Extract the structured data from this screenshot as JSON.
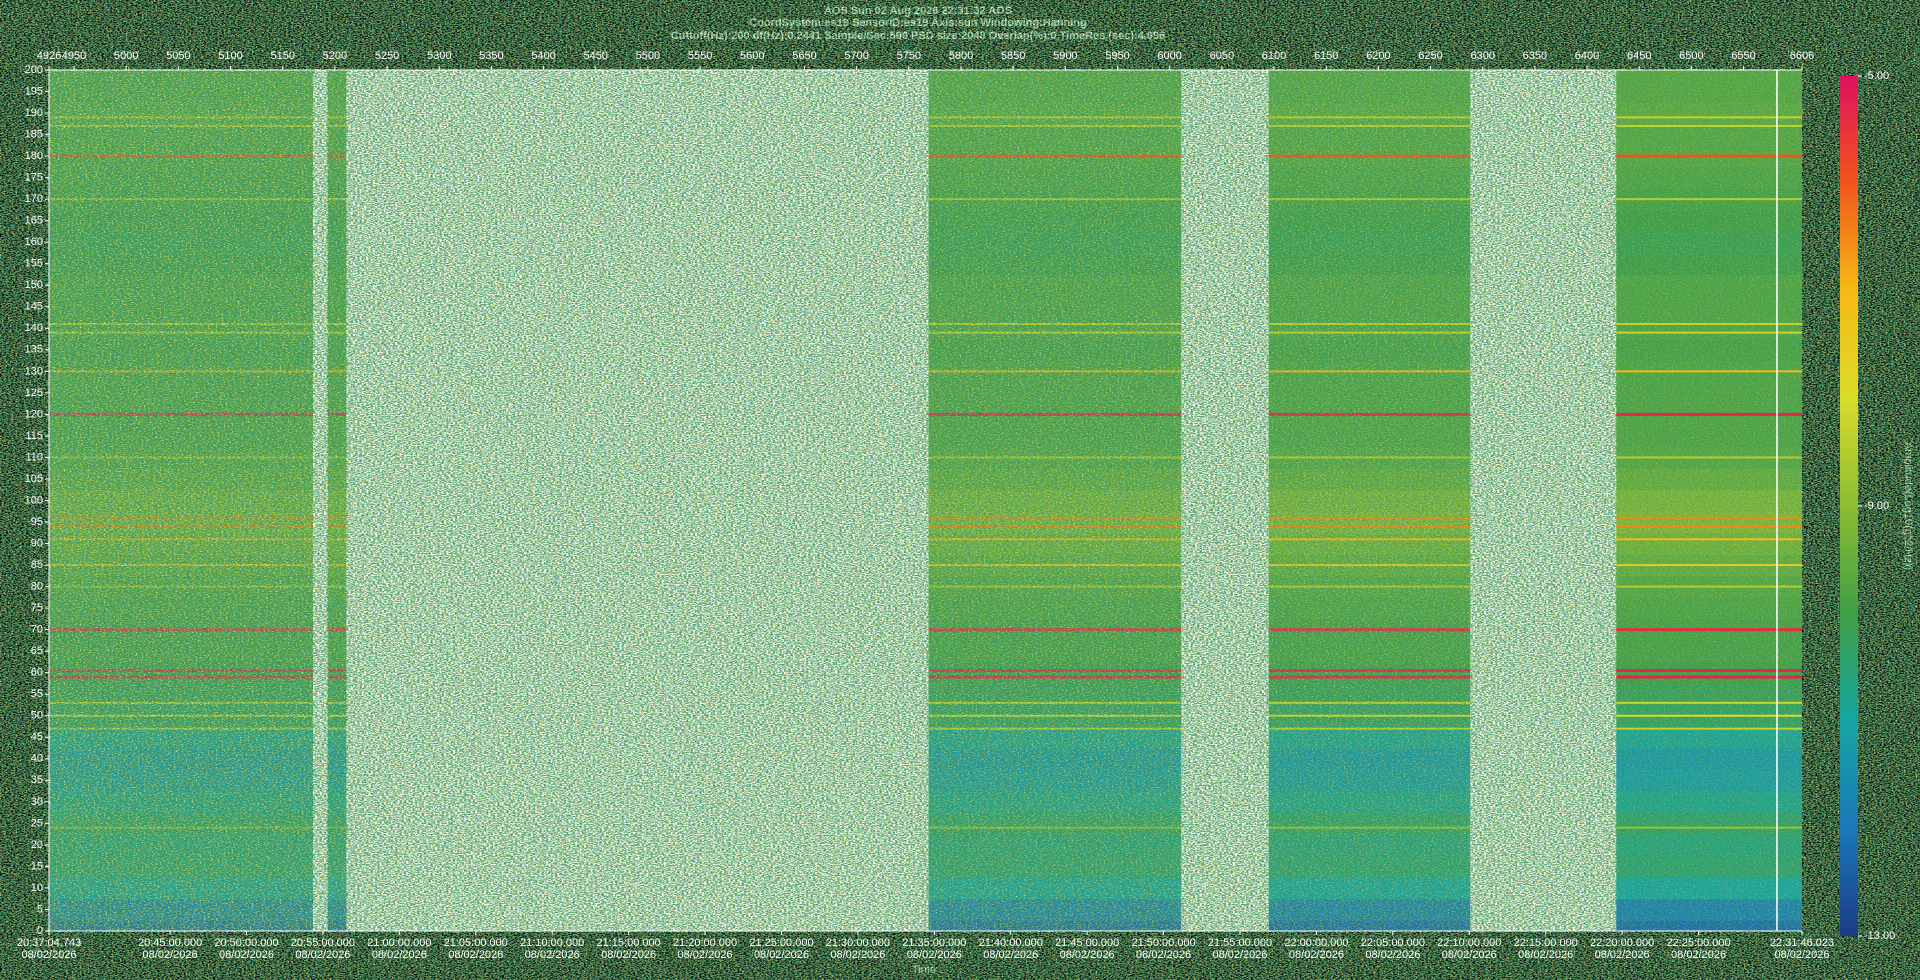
{
  "chart_data": {
    "type": "spectrogram",
    "title": "AOS  Sun 02 Aug 2026 22:31:32  AOS",
    "subtitle": "CoordSystem:es19   SensorID:es19   Axis:sun   Windowing:Hanning",
    "parameters": "Cuttoff(Hz):200     df(Hz):0.2441     Sample/Sec:500     PSD size:2048     Overlap(%):0     TimeRes.(sec):4.096",
    "x_label": "Time",
    "colorbar_label": "Amplitude(Log10(g^2/Hz))",
    "xlim": [
      74224.743,
      81106.023
    ],
    "xticks": [
      {
        "value": 74224.743,
        "label": "20:37:04.743"
      },
      {
        "value": 74700,
        "label": "20:45:00.000"
      },
      {
        "value": 75000,
        "label": "20:50:00.000"
      },
      {
        "value": 75300,
        "label": "20:55:00.000"
      },
      {
        "value": 75600,
        "label": "21:00:00.000"
      },
      {
        "value": 75900,
        "label": "21:05:00.000"
      },
      {
        "value": 76200,
        "label": "21:10:00.000"
      },
      {
        "value": 76500,
        "label": "21:15:00.000"
      },
      {
        "value": 76800,
        "label": "21:20:00.000"
      },
      {
        "value": 77100,
        "label": "21:25:00.000"
      },
      {
        "value": 77400,
        "label": "21:30:00.000"
      },
      {
        "value": 77700,
        "label": "21:35:00.000"
      },
      {
        "value": 78000,
        "label": "21:40:00.000"
      },
      {
        "value": 78300,
        "label": "21:45:00.000"
      },
      {
        "value": 78600,
        "label": "21:50:00.000"
      },
      {
        "value": 78900,
        "label": "21:55:00.000"
      },
      {
        "value": 79200,
        "label": "22:00:00.000"
      },
      {
        "value": 79500,
        "label": "22:05:00.000"
      },
      {
        "value": 79800,
        "label": "22:10:00.000"
      },
      {
        "value": 80100,
        "label": "22:15:00.000"
      },
      {
        "value": 80400,
        "label": "22:20:00.000"
      },
      {
        "value": 80700,
        "label": "22:25:00.000"
      },
      {
        "value": 81106.023,
        "label": "22:31:46.023"
      }
    ],
    "date": "08/02/2026",
    "x2lim": [
      4926,
      6606
    ],
    "x2ticks": [
      4926,
      4950,
      5000,
      5050,
      5100,
      5150,
      5200,
      5250,
      5300,
      5350,
      5400,
      5450,
      5500,
      5550,
      5600,
      5650,
      5700,
      5750,
      5800,
      5850,
      5900,
      5950,
      6000,
      6050,
      6100,
      6150,
      6200,
      6250,
      6300,
      6350,
      6400,
      6450,
      6500,
      6550,
      6606
    ],
    "ylim": [
      0,
      200
    ],
    "yticks": [
      0,
      5,
      10,
      15,
      20,
      25,
      30,
      35,
      40,
      45,
      50,
      55,
      60,
      65,
      70,
      75,
      80,
      85,
      90,
      95,
      100,
      105,
      110,
      115,
      120,
      125,
      130,
      135,
      140,
      145,
      150,
      155,
      160,
      165,
      170,
      175,
      180,
      185,
      190,
      195,
      200
    ],
    "clim": [
      -13,
      -5
    ],
    "cticks": [
      {
        "value": -13,
        "label": "-13.00"
      },
      {
        "value": -9,
        "label": "-9.00"
      },
      {
        "value": -5,
        "label": "-5.00"
      }
    ],
    "colormap": [
      "#1b3c86",
      "#1a78b8",
      "#16a6a2",
      "#3f9f45",
      "#8cbd33",
      "#d9dc2a",
      "#f6ba14",
      "#f0561b",
      "#e01060"
    ],
    "segments": [
      {
        "start": 4926,
        "end": 5179
      },
      {
        "start": 5193,
        "end": 5211
      },
      {
        "start": 5769,
        "end": 6011
      },
      {
        "start": 6095,
        "end": 6288
      },
      {
        "start": 6428,
        "end": 6606
      }
    ],
    "dropouts": [
      6582
    ],
    "background": [
      {
        "frequency": 0,
        "amplitude": -12.2
      },
      {
        "frequency": 5,
        "amplitude": -11.8
      },
      {
        "frequency": 10,
        "amplitude": -11
      },
      {
        "frequency": 15,
        "amplitude": -10.5
      },
      {
        "frequency": 20,
        "amplitude": -10.6
      },
      {
        "frequency": 25,
        "amplitude": -10.4
      },
      {
        "frequency": 30,
        "amplitude": -10.8
      },
      {
        "frequency": 35,
        "amplitude": -11.2
      },
      {
        "frequency": 40,
        "amplitude": -11.3
      },
      {
        "frequency": 45,
        "amplitude": -10.9
      },
      {
        "frequency": 50,
        "amplitude": -10.3
      },
      {
        "frequency": 55,
        "amplitude": -10.2
      },
      {
        "frequency": 60,
        "amplitude": -10
      },
      {
        "frequency": 65,
        "amplitude": -9.9
      },
      {
        "frequency": 70,
        "amplitude": -9.9
      },
      {
        "frequency": 75,
        "amplitude": -9.8
      },
      {
        "frequency": 80,
        "amplitude": -9.7
      },
      {
        "frequency": 85,
        "amplitude": -9.5
      },
      {
        "frequency": 90,
        "amplitude": -9.3
      },
      {
        "frequency": 95,
        "amplitude": -9.1
      },
      {
        "frequency": 100,
        "amplitude": -9.2
      },
      {
        "frequency": 105,
        "amplitude": -9.5
      },
      {
        "frequency": 110,
        "amplitude": -9.7
      },
      {
        "frequency": 115,
        "amplitude": -9.8
      },
      {
        "frequency": 120,
        "amplitude": -9.8
      },
      {
        "frequency": 125,
        "amplitude": -9.8
      },
      {
        "frequency": 130,
        "amplitude": -9.8
      },
      {
        "frequency": 135,
        "amplitude": -9.9
      },
      {
        "frequency": 140,
        "amplitude": -9.8
      },
      {
        "frequency": 145,
        "amplitude": -9.8
      },
      {
        "frequency": 150,
        "amplitude": -9.8
      },
      {
        "frequency": 155,
        "amplitude": -10
      },
      {
        "frequency": 160,
        "amplitude": -10.1
      },
      {
        "frequency": 165,
        "amplitude": -10
      },
      {
        "frequency": 170,
        "amplitude": -9.9
      },
      {
        "frequency": 175,
        "amplitude": -9.8
      },
      {
        "frequency": 180,
        "amplitude": -9.7
      },
      {
        "frequency": 185,
        "amplitude": -9.7
      },
      {
        "frequency": 190,
        "amplitude": -9.6
      },
      {
        "frequency": 195,
        "amplitude": -9.7
      },
      {
        "frequency": 200,
        "amplitude": -9.7
      }
    ],
    "tones": [
      {
        "frequency": 189,
        "amplitude": -8.3
      },
      {
        "frequency": 187,
        "amplitude": -8.3
      },
      {
        "frequency": 180,
        "amplitude": -6
      },
      {
        "frequency": 170,
        "amplitude": -8.5
      },
      {
        "frequency": 141,
        "amplitude": -8.3
      },
      {
        "frequency": 139,
        "amplitude": -8.2
      },
      {
        "frequency": 130,
        "amplitude": -7
      },
      {
        "frequency": 120,
        "amplitude": -5.3
      },
      {
        "frequency": 110,
        "amplitude": -8.5
      },
      {
        "frequency": 96,
        "amplitude": -6.5
      },
      {
        "frequency": 94,
        "amplitude": -6.5
      },
      {
        "frequency": 91,
        "amplitude": -7
      },
      {
        "frequency": 85,
        "amplitude": -7.5
      },
      {
        "frequency": 80,
        "amplitude": -8.5
      },
      {
        "frequency": 70,
        "amplitude": -5.4
      },
      {
        "frequency": 60.5,
        "amplitude": -5.3
      },
      {
        "frequency": 59,
        "amplitude": -5.3
      },
      {
        "frequency": 53,
        "amplitude": -8.2
      },
      {
        "frequency": 50,
        "amplitude": -8
      },
      {
        "frequency": 47,
        "amplitude": -8.3
      },
      {
        "frequency": 24,
        "amplitude": -8.8
      }
    ]
  }
}
